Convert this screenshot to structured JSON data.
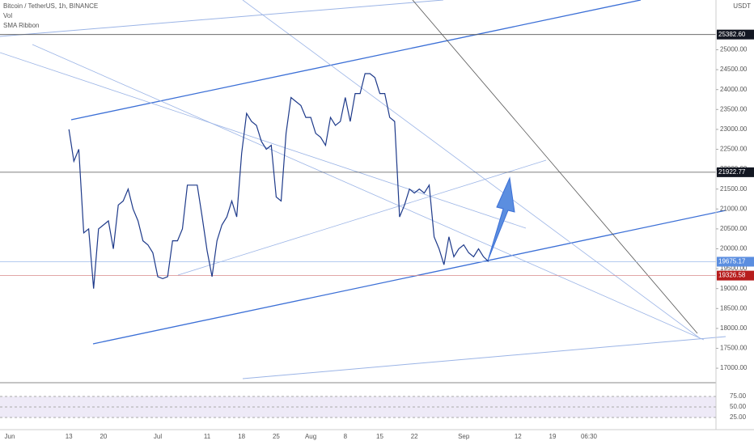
{
  "chart_data": {
    "type": "line",
    "legend_lines": [
      "Bitcoin / TetherUS, 1h, BINANCE",
      "Vol",
      "SMA Ribbon"
    ],
    "currency": "USDT",
    "countdown": "06:30",
    "color": "#1e3a8a",
    "categories": [
      "Jun",
      null,
      null,
      null,
      null,
      null,
      null,
      null,
      null,
      null,
      null,
      null,
      "13",
      null,
      null,
      null,
      null,
      null,
      null,
      "20",
      null,
      null,
      null,
      null,
      null,
      null,
      null,
      null,
      null,
      null,
      "Jul",
      null,
      null,
      null,
      null,
      null,
      null,
      null,
      null,
      null,
      "11",
      null,
      null,
      null,
      null,
      null,
      null,
      "18",
      null,
      null,
      null,
      null,
      null,
      null,
      "25",
      null,
      null,
      null,
      null,
      null,
      null,
      "Aug",
      null,
      null,
      null,
      null,
      null,
      null,
      "8",
      null,
      null,
      null,
      null,
      null,
      null,
      "15",
      null,
      null,
      null,
      null,
      null,
      null,
      "22",
      null,
      null,
      null,
      null,
      null,
      null,
      null,
      null,
      null,
      "Sep",
      null,
      null,
      null,
      null,
      null,
      null,
      null,
      null,
      null,
      null,
      "12",
      null,
      null,
      null,
      null,
      null,
      null,
      "19",
      null,
      null,
      null,
      null,
      null,
      null,
      null,
      null,
      null,
      null,
      null
    ],
    "values": [
      null,
      null,
      null,
      null,
      null,
      null,
      null,
      null,
      null,
      null,
      null,
      null,
      23000,
      22200,
      22500,
      20400,
      20500,
      19000,
      20500,
      20600,
      20700,
      20000,
      21100,
      21200,
      21500,
      21000,
      20700,
      20200,
      20100,
      19900,
      19300,
      19250,
      19300,
      20200,
      20200,
      20500,
      21600,
      21600,
      21600,
      20800,
      19950,
      19300,
      20200,
      20600,
      20800,
      21200,
      20800,
      22400,
      23400,
      23200,
      23100,
      22700,
      22500,
      22600,
      21300,
      21200,
      22900,
      23800,
      23700,
      23600,
      23300,
      23300,
      22900,
      22800,
      22600,
      23300,
      23100,
      23200,
      23800,
      23200,
      23900,
      23900,
      24400,
      24400,
      24300,
      23900,
      23900,
      23300,
      23200,
      20800,
      21100,
      21500,
      21400,
      21500,
      21400,
      21600,
      20300,
      20000,
      19600,
      20300,
      19800,
      20000,
      20100,
      19900,
      19800,
      20000,
      19800,
      19680,
      null,
      null,
      null,
      null,
      null,
      null,
      null,
      null,
      null,
      null,
      null,
      null,
      null,
      null,
      null,
      null,
      null,
      null,
      null,
      null,
      null,
      null,
      null,
      null
    ],
    "ylim": [
      16900,
      26250
    ],
    "yticks": [
      {
        "value": 17000,
        "label": "17000.00"
      },
      {
        "value": 17500,
        "label": "17500.00"
      },
      {
        "value": 18000,
        "label": "18000.00"
      },
      {
        "value": 18500,
        "label": "18500.00"
      },
      {
        "value": 19000,
        "label": "19000.00"
      },
      {
        "value": 19500,
        "label": "19500.00"
      },
      {
        "value": 20000,
        "label": "20000.00"
      },
      {
        "value": 20500,
        "label": "20500.00"
      },
      {
        "value": 21000,
        "label": "21000.00"
      },
      {
        "value": 21500,
        "label": "21500.00"
      },
      {
        "value": 22000,
        "label": "22000.00"
      },
      {
        "value": 22500,
        "label": "22500.00"
      },
      {
        "value": 23000,
        "label": "23000.00"
      },
      {
        "value": 23500,
        "label": "23500.00"
      },
      {
        "value": 24000,
        "label": "24000.00"
      },
      {
        "value": 24500,
        "label": "24500.00"
      },
      {
        "value": 25000,
        "label": "25000.00"
      }
    ],
    "price_lines": [
      {
        "value": 25382.6,
        "label": "25382.60",
        "color": "#131722",
        "line": "#555"
      },
      {
        "value": 21922.77,
        "label": "21922.77",
        "color": "#131722",
        "line": "#555"
      },
      {
        "value": 19675.17,
        "label": "19675.17",
        "color": "#5b8ee0",
        "line": "#9bb8ea"
      },
      {
        "value": 19326.58,
        "label": "19326.58",
        "color": "#b71c1c",
        "line": "#d98a8a"
      }
    ],
    "rsi_ticks": [
      {
        "value": 75,
        "label": "75.00"
      },
      {
        "value": 50,
        "label": "50.00"
      },
      {
        "value": 25,
        "label": "25.00"
      }
    ]
  }
}
